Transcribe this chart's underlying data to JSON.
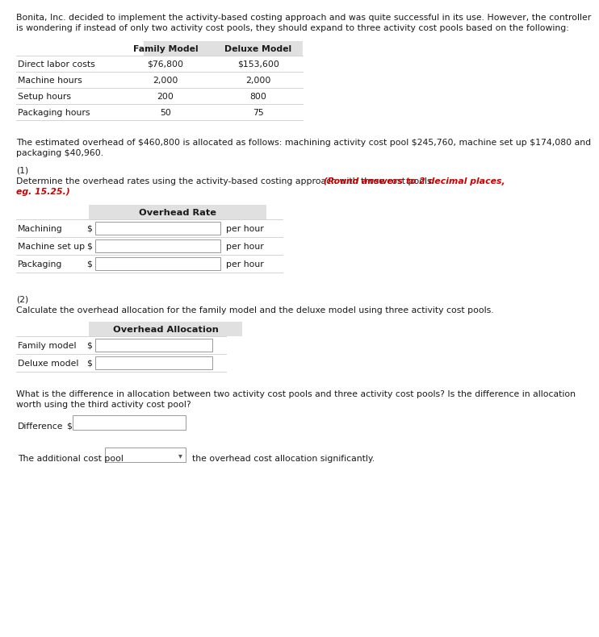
{
  "intro_line1": "Bonita, Inc. decided to implement the activity-based costing approach and was quite successful in its use. However, the controller",
  "intro_line2": "is wondering if instead of only two activity cost pools, they should expand to three activity cost pools based on the following:",
  "table1_header": [
    "Family Model",
    "Deluxe Model"
  ],
  "table1_rows": [
    [
      "Direct labor costs",
      "$76,800",
      "$153,600"
    ],
    [
      "Machine hours",
      "2,000",
      "2,000"
    ],
    [
      "Setup hours",
      "200",
      "800"
    ],
    [
      "Packaging hours",
      "50",
      "75"
    ]
  ],
  "overhead_line1": "The estimated overhead of $460,800 is allocated as follows: machining activity cost pool $245,760, machine set up $174,080 and",
  "overhead_line2": "packaging $40,960.",
  "section1_label": "(1)",
  "section1_line1": "Determine the overhead rates using the activity-based costing approach with three cost pools.",
  "section1_red1": " (Round answers to 2 decimal places,",
  "section1_red2": "eg. 15.25.)",
  "overhead_rate_header": "Overhead Rate",
  "overhead_rate_rows": [
    [
      "Machining",
      "$",
      "per hour"
    ],
    [
      "Machine set up",
      "$",
      "per hour"
    ],
    [
      "Packaging",
      "$",
      "per hour"
    ]
  ],
  "section2_label": "(2)",
  "section2_text": "Calculate the overhead allocation for the family model and the deluxe model using three activity cost pools.",
  "overhead_alloc_header": "Overhead Allocation",
  "overhead_alloc_rows": [
    [
      "Family model",
      "$"
    ],
    [
      "Deluxe model",
      "$"
    ]
  ],
  "diff_line1": "What is the difference in allocation between two activity cost pools and three activity cost pools? Is the difference in allocation",
  "diff_line2": "worth using the third activity cost pool?",
  "difference_label": "Difference",
  "difference_dollar": "$",
  "additional_pre": "The additional cost pool",
  "additional_post": "the overhead cost allocation significantly.",
  "bg_color": "#ffffff",
  "header_bg": "#e0e0e0",
  "text_color": "#1a1a1a",
  "red_color": "#cc0000",
  "border_color": "#999999",
  "font_size": 7.8,
  "header_font_size": 8.2
}
